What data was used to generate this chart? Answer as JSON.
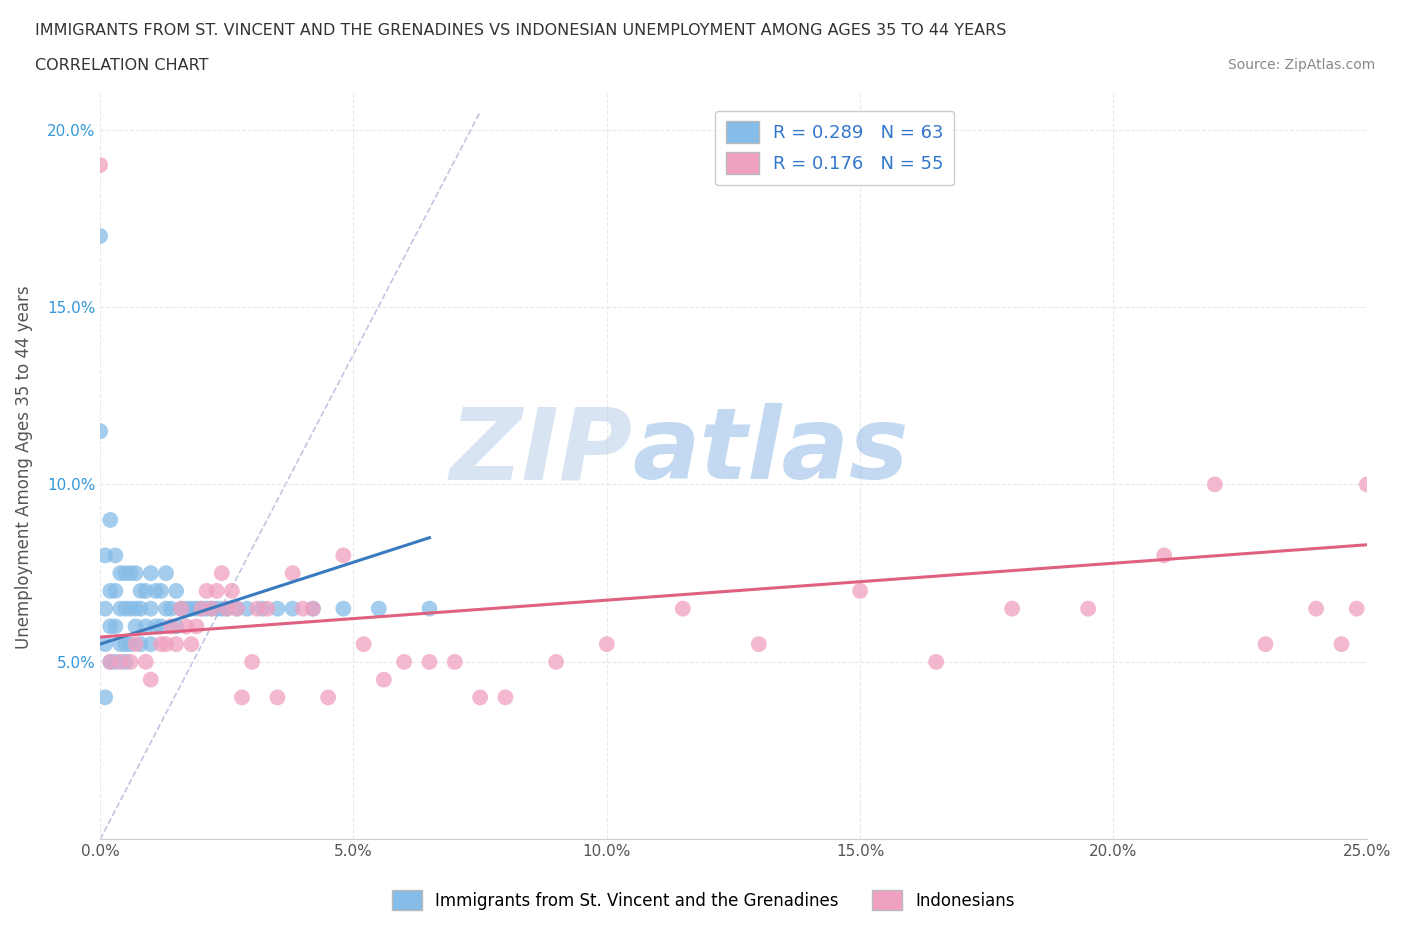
{
  "title_line1": "IMMIGRANTS FROM ST. VINCENT AND THE GRENADINES VS INDONESIAN UNEMPLOYMENT AMONG AGES 35 TO 44 YEARS",
  "title_line2": "CORRELATION CHART",
  "source_text": "Source: ZipAtlas.com",
  "ylabel": "Unemployment Among Ages 35 to 44 years",
  "xlim": [
    0.0,
    0.25
  ],
  "ylim": [
    0.0,
    0.21
  ],
  "xticks": [
    0.0,
    0.05,
    0.1,
    0.15,
    0.2,
    0.25
  ],
  "xticklabels": [
    "0.0%",
    "5.0%",
    "10.0%",
    "15.0%",
    "20.0%",
    "25.0%"
  ],
  "yticks": [
    0.05,
    0.1,
    0.15,
    0.2
  ],
  "yticklabels": [
    "5.0%",
    "10.0%",
    "15.0%",
    "20.0%"
  ],
  "watermark_zip": "ZIP",
  "watermark_atlas": "atlas",
  "blue_color": "#85bce8",
  "pink_color": "#f0a0c0",
  "blue_line_color": "#3a7bbf",
  "pink_line_color": "#e06080",
  "diag_line_color": "#b0b8d8",
  "grid_color": "#e8e8e8",
  "blue_scatter_x": [
    0.0,
    0.0,
    0.001,
    0.001,
    0.001,
    0.001,
    0.002,
    0.002,
    0.002,
    0.002,
    0.003,
    0.003,
    0.003,
    0.003,
    0.004,
    0.004,
    0.004,
    0.005,
    0.005,
    0.005,
    0.005,
    0.006,
    0.006,
    0.006,
    0.007,
    0.007,
    0.007,
    0.008,
    0.008,
    0.008,
    0.009,
    0.009,
    0.01,
    0.01,
    0.01,
    0.011,
    0.011,
    0.012,
    0.012,
    0.013,
    0.013,
    0.014,
    0.015,
    0.015,
    0.016,
    0.017,
    0.018,
    0.019,
    0.02,
    0.021,
    0.022,
    0.023,
    0.024,
    0.025,
    0.027,
    0.029,
    0.032,
    0.035,
    0.038,
    0.042,
    0.048,
    0.055,
    0.065
  ],
  "blue_scatter_y": [
    0.115,
    0.17,
    0.04,
    0.055,
    0.065,
    0.08,
    0.05,
    0.06,
    0.07,
    0.09,
    0.05,
    0.06,
    0.07,
    0.08,
    0.055,
    0.065,
    0.075,
    0.05,
    0.055,
    0.065,
    0.075,
    0.055,
    0.065,
    0.075,
    0.06,
    0.065,
    0.075,
    0.055,
    0.065,
    0.07,
    0.06,
    0.07,
    0.055,
    0.065,
    0.075,
    0.06,
    0.07,
    0.06,
    0.07,
    0.065,
    0.075,
    0.065,
    0.06,
    0.07,
    0.065,
    0.065,
    0.065,
    0.065,
    0.065,
    0.065,
    0.065,
    0.065,
    0.065,
    0.065,
    0.065,
    0.065,
    0.065,
    0.065,
    0.065,
    0.065,
    0.065,
    0.065,
    0.065
  ],
  "pink_scatter_x": [
    0.0,
    0.002,
    0.004,
    0.006,
    0.007,
    0.009,
    0.01,
    0.012,
    0.013,
    0.014,
    0.015,
    0.016,
    0.017,
    0.018,
    0.019,
    0.02,
    0.021,
    0.022,
    0.023,
    0.024,
    0.025,
    0.026,
    0.027,
    0.028,
    0.03,
    0.031,
    0.033,
    0.035,
    0.038,
    0.04,
    0.042,
    0.045,
    0.048,
    0.052,
    0.056,
    0.06,
    0.065,
    0.07,
    0.075,
    0.08,
    0.09,
    0.1,
    0.115,
    0.13,
    0.15,
    0.165,
    0.18,
    0.195,
    0.21,
    0.22,
    0.23,
    0.24,
    0.245,
    0.248,
    0.25
  ],
  "pink_scatter_y": [
    0.19,
    0.05,
    0.05,
    0.05,
    0.055,
    0.05,
    0.045,
    0.055,
    0.055,
    0.06,
    0.055,
    0.065,
    0.06,
    0.055,
    0.06,
    0.065,
    0.07,
    0.065,
    0.07,
    0.075,
    0.065,
    0.07,
    0.065,
    0.04,
    0.05,
    0.065,
    0.065,
    0.04,
    0.075,
    0.065,
    0.065,
    0.04,
    0.08,
    0.055,
    0.045,
    0.05,
    0.05,
    0.05,
    0.04,
    0.04,
    0.05,
    0.055,
    0.065,
    0.055,
    0.07,
    0.05,
    0.065,
    0.065,
    0.08,
    0.1,
    0.055,
    0.065,
    0.055,
    0.065,
    0.1
  ],
  "blue_trend_x": [
    0.0,
    0.065
  ],
  "blue_trend_y": [
    0.055,
    0.085
  ],
  "pink_trend_x": [
    0.0,
    0.25
  ],
  "pink_trend_y": [
    0.057,
    0.083
  ]
}
